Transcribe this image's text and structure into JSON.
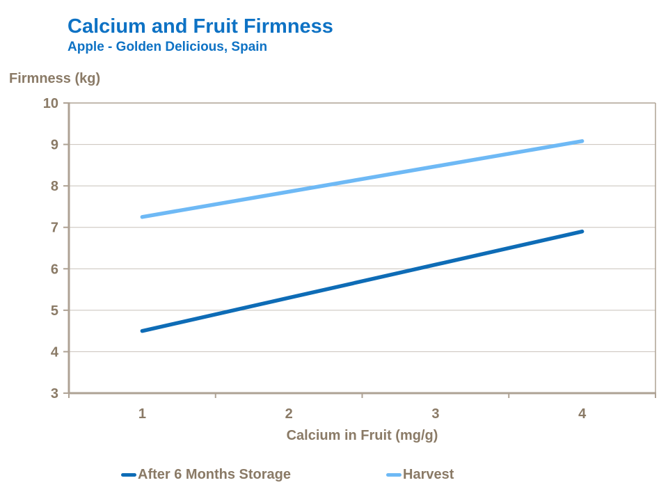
{
  "header": {
    "title": "Calcium and Fruit Firmness",
    "subtitle": "Apple - Golden Delicious, Spain"
  },
  "axes": {
    "y_title": "Firmness (kg)",
    "x_title": "Calcium in Fruit (mg/g)"
  },
  "colors": {
    "title_blue": "#0E72C4",
    "axis_text": "#8A7A66",
    "axis_line": "#AEA294",
    "gridline": "#C8C1B9",
    "background": "#FFFFFF"
  },
  "chart_data": {
    "type": "line",
    "title": "Calcium and Fruit Firmness",
    "subtitle": "Apple - Golden Delicious, Spain",
    "xlabel": "Calcium in Fruit (mg/g)",
    "ylabel": "Firmness (kg)",
    "categories": [
      "1",
      "2",
      "3",
      "4"
    ],
    "series": [
      {
        "name": "After 6 Months Storage",
        "values": [
          4.5,
          5.3,
          6.1,
          6.9
        ],
        "color": "#0E6CB6"
      },
      {
        "name": "Harvest",
        "values": [
          7.25,
          7.86,
          8.47,
          9.08
        ],
        "color": "#6EB9F5"
      }
    ],
    "ylim": [
      3,
      10
    ],
    "y_ticks": [
      10,
      9,
      8,
      7,
      6,
      5,
      4,
      3
    ],
    "grid": "horizontal",
    "legend_position": "bottom"
  }
}
